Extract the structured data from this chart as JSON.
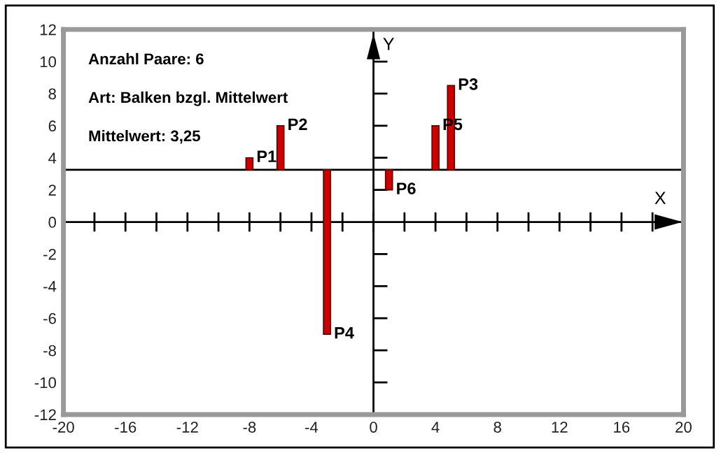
{
  "chart_data": {
    "type": "bar",
    "xlabel": "X",
    "ylabel": "Y",
    "x": [
      -8,
      -6,
      -3,
      1,
      4,
      5
    ],
    "base": [
      3.25,
      3.25,
      3.25,
      3.25,
      3.25,
      3.25
    ],
    "values": [
      0.75,
      2.75,
      -10.25,
      -1.25,
      2.75,
      5.25
    ],
    "color": "#cc0000",
    "annotations": [
      {
        "text": "P1",
        "x": -8,
        "y": 4
      },
      {
        "text": "P2",
        "x": -6,
        "y": 6
      },
      {
        "text": "P3",
        "x": 5,
        "y": 8.5
      },
      {
        "text": "P4",
        "x": -3,
        "y": -7
      },
      {
        "text": "P5",
        "x": 4,
        "y": 6
      },
      {
        "text": "P6",
        "x": 1,
        "y": 2
      },
      "Anzahl Paare: 6",
      "Art: Balken bzgl. Mittelwert",
      "Mittelwert: 3,25"
    ],
    "ref_lines": [
      {
        "axis": "y",
        "value": 3.25,
        "color": "#000000"
      },
      {
        "axis": "y",
        "value": 0,
        "color": "#000000"
      },
      {
        "axis": "x",
        "value": 0,
        "color": "#000000"
      }
    ],
    "xlim": [
      -20,
      20
    ],
    "ylim": [
      -12,
      12
    ],
    "xticks": [
      -20,
      -16,
      -12,
      -8,
      -4,
      0,
      4,
      8,
      12,
      16,
      20
    ],
    "yticks": [
      -12,
      -10,
      -8,
      -6,
      -4,
      -2,
      0,
      2,
      4,
      6,
      8,
      10,
      12
    ],
    "grid": false
  }
}
